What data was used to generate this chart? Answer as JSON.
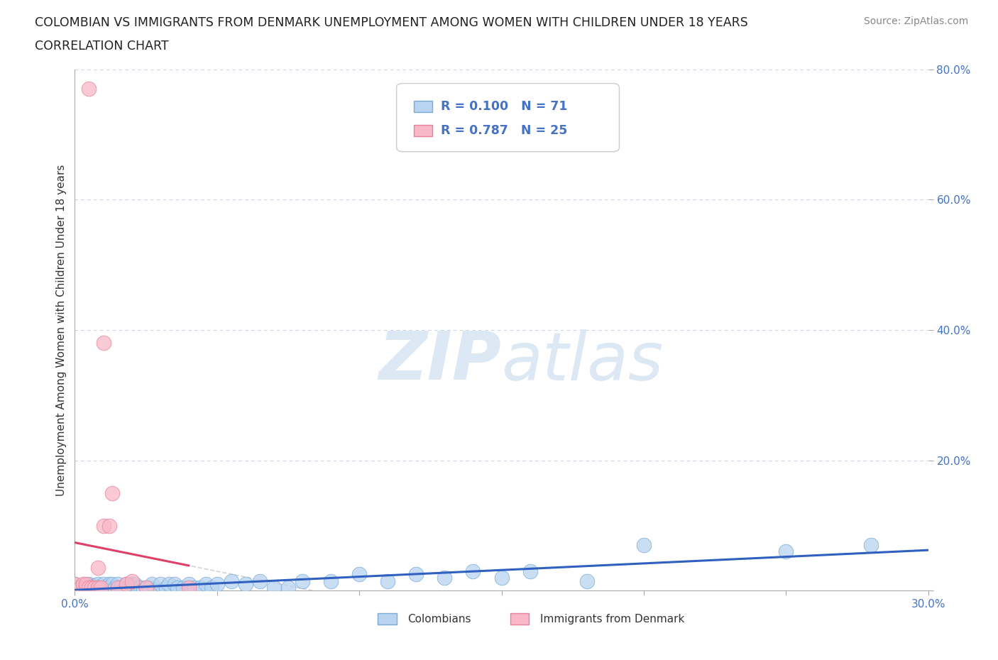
{
  "title_line1": "COLOMBIAN VS IMMIGRANTS FROM DENMARK UNEMPLOYMENT AMONG WOMEN WITH CHILDREN UNDER 18 YEARS",
  "title_line2": "CORRELATION CHART",
  "source_text": "Source: ZipAtlas.com",
  "ylabel": "Unemployment Among Women with Children Under 18 years",
  "xlim": [
    0.0,
    0.3
  ],
  "ylim": [
    0.0,
    0.8
  ],
  "xticks": [
    0.0,
    0.05,
    0.1,
    0.15,
    0.2,
    0.25,
    0.3
  ],
  "yticks": [
    0.0,
    0.2,
    0.4,
    0.6,
    0.8
  ],
  "colombian_color": "#b8d4f0",
  "denmark_color": "#f8b8c8",
  "colombian_edge": "#7aaad8",
  "denmark_edge": "#e88098",
  "trend_colombian_color": "#3060c0",
  "trend_denmark_color": "#e04068",
  "trend_gray_color": "#c8c8c8",
  "R_colombian": 0.1,
  "N_colombian": 71,
  "R_denmark": 0.787,
  "N_denmark": 25,
  "background_color": "#ffffff",
  "grid_color": "#c8d4e8",
  "watermark_color": "#dce8f4",
  "legend_text_color": "#4472c4",
  "colombian_x": [
    0.0,
    0.0,
    0.001,
    0.002,
    0.003,
    0.004,
    0.005,
    0.005,
    0.005,
    0.006,
    0.007,
    0.007,
    0.008,
    0.008,
    0.009,
    0.009,
    0.01,
    0.01,
    0.011,
    0.011,
    0.012,
    0.012,
    0.013,
    0.013,
    0.014,
    0.015,
    0.015,
    0.016,
    0.017,
    0.018,
    0.019,
    0.02,
    0.02,
    0.021,
    0.022,
    0.023,
    0.024,
    0.025,
    0.026,
    0.027,
    0.028,
    0.03,
    0.032,
    0.033,
    0.035,
    0.036,
    0.038,
    0.04,
    0.042,
    0.044,
    0.046,
    0.048,
    0.05,
    0.055,
    0.06,
    0.065,
    0.07,
    0.075,
    0.08,
    0.09,
    0.1,
    0.11,
    0.12,
    0.13,
    0.14,
    0.15,
    0.16,
    0.18,
    0.2,
    0.25,
    0.28
  ],
  "colombian_y": [
    0.0,
    0.01,
    0.005,
    0.0,
    0.005,
    0.005,
    0.0,
    0.005,
    0.01,
    0.0,
    0.005,
    0.008,
    0.005,
    0.01,
    0.0,
    0.005,
    0.0,
    0.01,
    0.0,
    0.005,
    0.005,
    0.01,
    0.01,
    0.0,
    0.005,
    0.005,
    0.01,
    0.005,
    0.0,
    0.01,
    0.005,
    0.0,
    0.01,
    0.01,
    0.005,
    0.005,
    0.0,
    0.005,
    0.005,
    0.01,
    0.0,
    0.01,
    0.005,
    0.01,
    0.01,
    0.005,
    0.005,
    0.01,
    0.005,
    0.005,
    0.01,
    0.005,
    0.01,
    0.015,
    0.01,
    0.015,
    0.005,
    0.005,
    0.015,
    0.015,
    0.025,
    0.015,
    0.025,
    0.02,
    0.03,
    0.02,
    0.03,
    0.015,
    0.07,
    0.06,
    0.07
  ],
  "denmark_x": [
    0.0,
    0.0,
    0.0,
    0.001,
    0.002,
    0.003,
    0.003,
    0.004,
    0.004,
    0.005,
    0.005,
    0.006,
    0.007,
    0.008,
    0.008,
    0.009,
    0.01,
    0.01,
    0.012,
    0.013,
    0.015,
    0.018,
    0.02,
    0.025,
    0.04
  ],
  "denmark_y": [
    0.0,
    0.005,
    0.01,
    0.0,
    0.005,
    0.0,
    0.01,
    0.005,
    0.01,
    0.005,
    0.77,
    0.005,
    0.005,
    0.005,
    0.035,
    0.005,
    0.1,
    0.38,
    0.1,
    0.15,
    0.005,
    0.01,
    0.015,
    0.005,
    0.005
  ]
}
